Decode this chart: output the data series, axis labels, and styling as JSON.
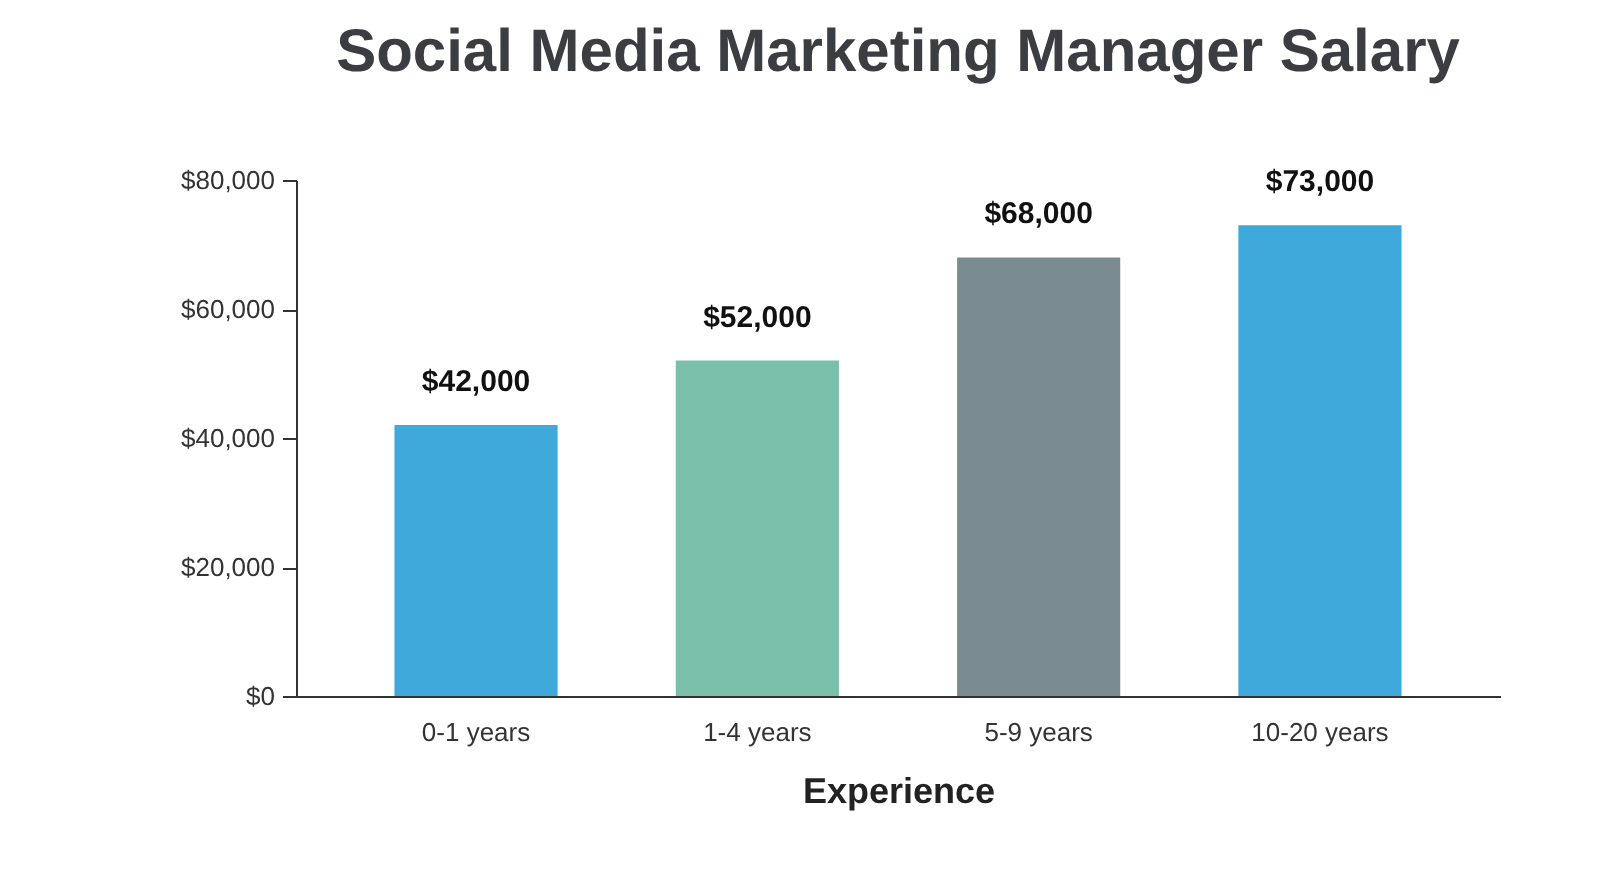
{
  "chart_data": {
    "type": "bar",
    "title": "Social Media Marketing Manager Salary",
    "xlabel": "Experience",
    "categories": [
      "0-1 years",
      "1-4 years",
      "5-9 years",
      "10-20 years"
    ],
    "values": [
      42000,
      52000,
      68000,
      73000
    ],
    "colors": [
      "#3fa9db",
      "#79bfa9",
      "#7a8b91",
      "#3fa9db"
    ],
    "value_labels": [
      "$42,000",
      "$52,000",
      "$68,000",
      "$73,000"
    ],
    "ylim": [
      0,
      80000
    ],
    "yticks": [
      {
        "value": 0,
        "label": "$0"
      },
      {
        "value": 20000,
        "label": "$20,000"
      },
      {
        "value": 40000,
        "label": "$40,000"
      },
      {
        "value": 60000,
        "label": "$60,000"
      },
      {
        "value": 80000,
        "label": "$80,000"
      }
    ],
    "grid": false
  }
}
